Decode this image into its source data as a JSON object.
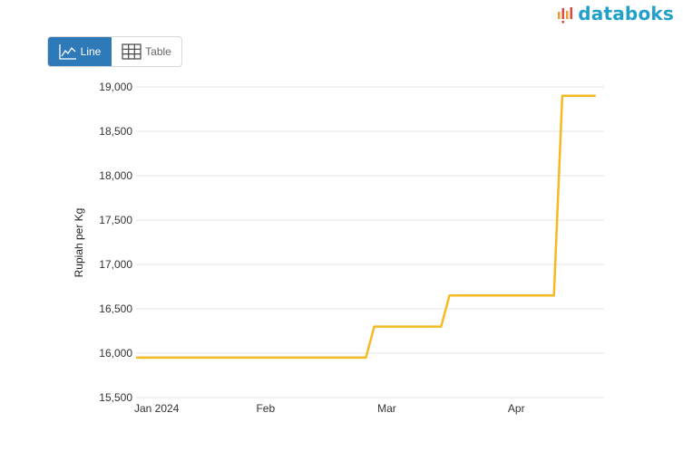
{
  "brand": {
    "name": "databoks",
    "color": "#21a0c9",
    "mark_colors": [
      "#f39c2b",
      "#e2473b",
      "#21a0c9"
    ]
  },
  "view_toggle": {
    "active": "line",
    "line": {
      "label": "Line",
      "icon": "line-chart-icon"
    },
    "table": {
      "label": "Table",
      "icon": "table-icon"
    },
    "active_color": "#2e7ab8"
  },
  "chart_data": {
    "type": "line",
    "title": "",
    "xlabel": "",
    "ylabel": "Rupiah per Kg",
    "ylim": [
      15500,
      19000
    ],
    "yticks": [
      "19,000",
      "18,500",
      "18,000",
      "17,500",
      "17,000",
      "16,500",
      "16,000",
      "15,500"
    ],
    "yticks_values": [
      19000,
      18500,
      18000,
      17500,
      17000,
      16500,
      16000,
      15500
    ],
    "xticks": [
      {
        "label": "Jan 2024",
        "date": "2024-01-01"
      },
      {
        "label": "Feb",
        "date": "2024-02-01"
      },
      {
        "label": "Mar",
        "date": "2024-03-01"
      },
      {
        "label": "Apr",
        "date": "2024-04-01"
      }
    ],
    "xlim": [
      "2024-01-01",
      "2024-04-22"
    ],
    "grid": true,
    "series": [
      {
        "color": "#f5b921",
        "points": [
          {
            "x": "2024-01-01",
            "y": 15950
          },
          {
            "x": "2024-02-25",
            "y": 15950
          },
          {
            "x": "2024-02-27",
            "y": 16300
          },
          {
            "x": "2024-03-14",
            "y": 16300
          },
          {
            "x": "2024-03-16",
            "y": 16650
          },
          {
            "x": "2024-04-10",
            "y": 16650
          },
          {
            "x": "2024-04-12",
            "y": 18900
          },
          {
            "x": "2024-04-20",
            "y": 18900
          }
        ]
      }
    ]
  }
}
